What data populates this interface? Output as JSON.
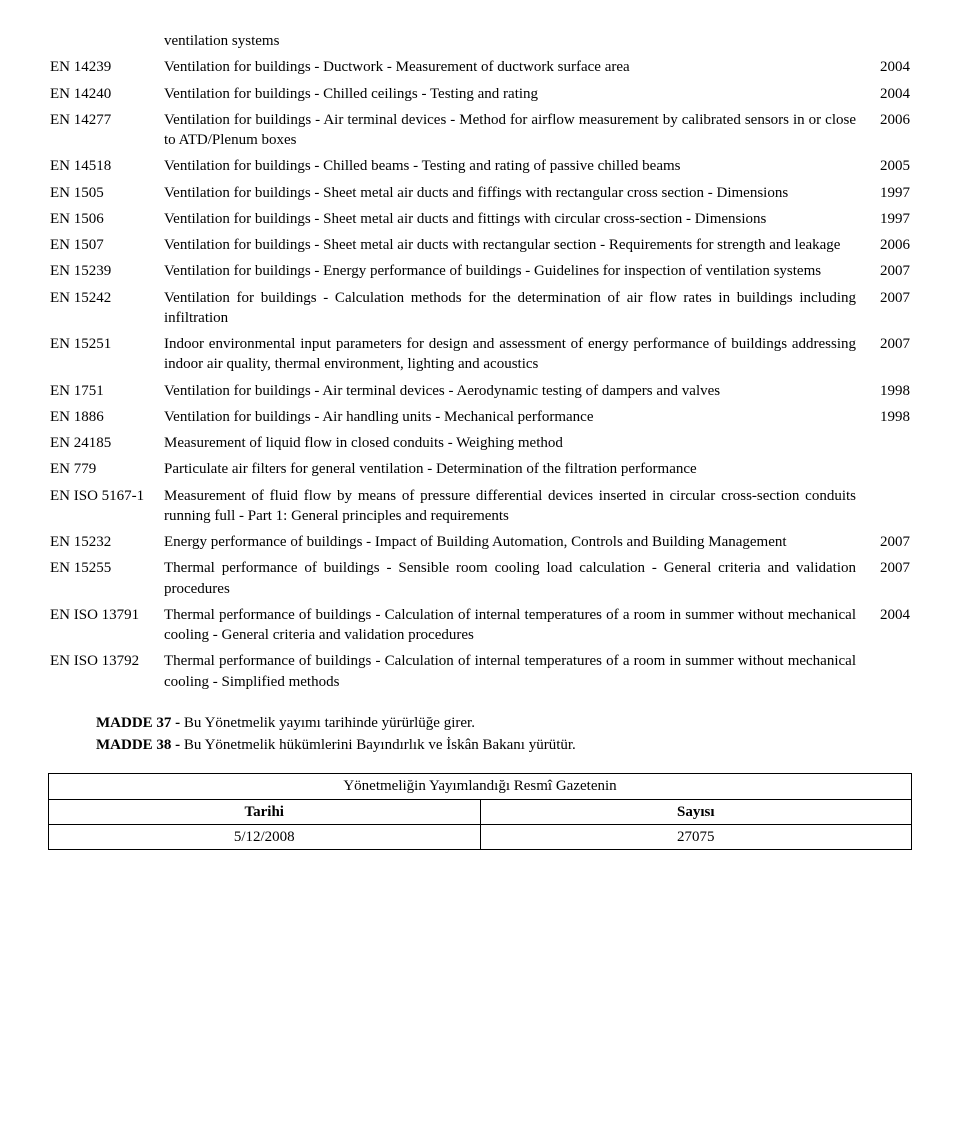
{
  "rows": [
    {
      "code": "",
      "desc": "ventilation systems",
      "year": ""
    },
    {
      "code": "EN 14239",
      "desc": "Ventilation for buildings - Ductwork - Measurement of ductwork surface area",
      "year": "2004"
    },
    {
      "code": "EN 14240",
      "desc": "Ventilation for buildings - Chilled ceilings - Testing and rating",
      "year": "2004"
    },
    {
      "code": "EN 14277",
      "desc": "Ventilation for buildings - Air terminal devices - Method for airflow measurement by calibrated sensors in or close to ATD/Plenum boxes",
      "year": "2006"
    },
    {
      "code": "EN 14518",
      "desc": "Ventilation for buildings - Chilled beams - Testing and rating of passive chilled beams",
      "year": "2005"
    },
    {
      "code": "EN 1505",
      "desc": "Ventilation for buildings - Sheet metal air ducts and fiffings with rectangular cross section - Dimensions",
      "year": "1997"
    },
    {
      "code": "EN 1506",
      "desc": "Ventilation for buildings - Sheet metal air ducts and fittings with circular cross-section - Dimensions",
      "year": "1997"
    },
    {
      "code": "EN 1507",
      "desc": "Ventilation for buildings - Sheet metal air ducts with rectangular section - Requirements for strength and leakage",
      "year": "2006"
    },
    {
      "code": "EN 15239",
      "desc": "Ventilation for buildings - Energy performance of buildings - Guidelines for inspection of ventilation systems",
      "year": "2007"
    },
    {
      "code": "EN 15242",
      "desc": "Ventilation for buildings - Calculation methods for the determination of air flow rates in buildings including infiltration",
      "year": "2007"
    },
    {
      "code": "EN 15251",
      "desc": "Indoor environmental input parameters for design and assessment of energy performance of buildings addressing indoor air quality, thermal environment, lighting and acoustics",
      "year": "2007"
    },
    {
      "code": "EN 1751",
      "desc": "Ventilation for buildings - Air terminal devices - Aerodynamic testing of dampers and valves",
      "year": "1998"
    },
    {
      "code": "EN 1886",
      "desc": "Ventilation for buildings - Air handling units - Mechanical performance",
      "year": "1998"
    },
    {
      "code": "EN 24185",
      "desc": "Measurement of liquid flow in closed conduits - Weighing method",
      "year": ""
    },
    {
      "code": "EN 779",
      "desc": "Particulate air filters for general ventilation - Determination of the filtration performance",
      "year": ""
    },
    {
      "code": "EN ISO 5167-1",
      "desc": "Measurement of fluid flow by means of pressure differential devices inserted in circular cross-section conduits running full - Part 1: General principles and requirements",
      "year": ""
    },
    {
      "code": "EN 15232",
      "desc": "Energy performance of buildings - Impact of Building Automation, Controls and Building Management",
      "year": "2007"
    },
    {
      "code": "EN 15255",
      "desc": "Thermal performance of buildings - Sensible room cooling load calculation - General criteria and validation procedures",
      "year": "2007"
    },
    {
      "code": "EN ISO 13791",
      "desc": "Thermal performance of buildings - Calculation of internal temperatures of a room in summer without mechanical cooling - General criteria and validation procedures",
      "year": "2004"
    },
    {
      "code": "EN ISO 13792",
      "desc": "Thermal performance of buildings - Calculation of internal temperatures of a room in summer without mechanical cooling - Simplified methods",
      "year": ""
    }
  ],
  "madde37_label": "MADDE 37 -",
  "madde37_text": " Bu Yönetmelik yayımı tarihinde yürürlüğe girer.",
  "madde38_label": "MADDE 38 -",
  "madde38_text": " Bu Yönetmelik hükümlerini Bayındırlık ve İskân Bakanı yürütür.",
  "gazete_title": "Yönetmeliğin Yayımlandığı Resmî Gazetenin",
  "gazete_tarihi_label": "Tarihi",
  "gazete_sayisi_label": "Sayısı",
  "gazete_tarihi_value": "5/12/2008",
  "gazete_sayisi_value": "27075"
}
